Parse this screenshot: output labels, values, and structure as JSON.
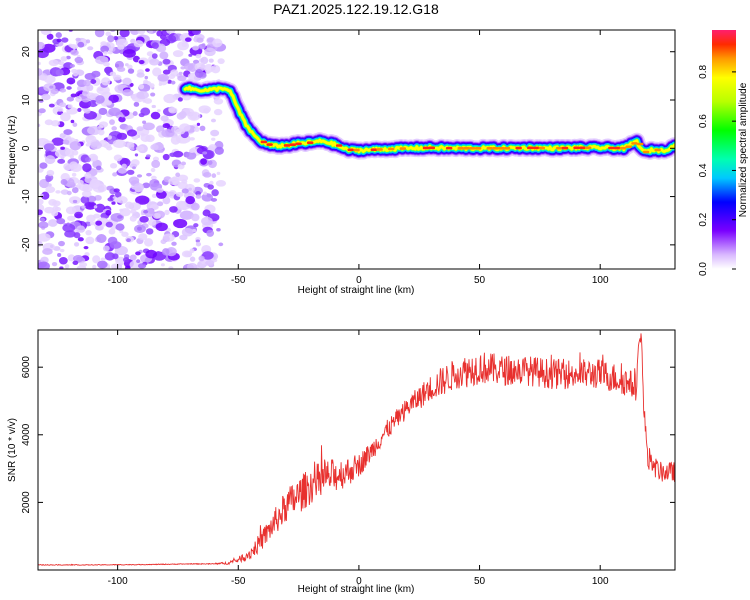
{
  "title": "PAZ1.2025.122.19.12.G18",
  "chart_data": [
    {
      "type": "heatmap",
      "xlabel": "Height of straight line (km)",
      "ylabel": "Frequency (Hz)",
      "xlim": [
        -133,
        131
      ],
      "ylim": [
        -25,
        24.5
      ],
      "xticks": [
        -100,
        -50,
        0,
        50,
        100
      ],
      "yticks": [
        -20,
        -10,
        0,
        10,
        20
      ],
      "ridge": {
        "x": [
          -72,
          -68,
          -64,
          -60,
          -56,
          -53,
          -50,
          -47,
          -44,
          -41,
          -38,
          -35,
          -30,
          -25,
          -20,
          -15,
          -10,
          -5,
          0,
          10,
          20,
          30,
          40,
          50,
          60,
          70,
          80,
          90,
          100,
          110,
          115,
          118,
          122,
          126,
          131
        ],
        "y": [
          12.5,
          12.2,
          12,
          12.2,
          12.5,
          11.5,
          8,
          5,
          3,
          1.5,
          0.8,
          0.5,
          0.6,
          1,
          1.2,
          1.5,
          0.8,
          -0.3,
          -0.4,
          -0.2,
          0,
          0.1,
          0,
          0,
          0,
          0.1,
          0,
          0.1,
          0.1,
          0,
          1.5,
          -0.8,
          -0.3,
          -0.5,
          0.5
        ]
      },
      "noise_region": [
        -133,
        -57
      ],
      "colorbar": {
        "label": "Normalized spectral amplitude",
        "ticks": [
          0.0,
          0.2,
          0.4,
          0.6,
          0.8
        ],
        "tick_labels": [
          "0.0",
          "0.2",
          "0.4",
          "0.6",
          "0.8"
        ],
        "range": [
          0,
          0.97
        ]
      }
    },
    {
      "type": "line",
      "xlabel": "Height of straight line (km)",
      "ylabel": "SNR (10 * v/v)",
      "xlim": [
        -133,
        131
      ],
      "ylim": [
        0,
        7100
      ],
      "xticks": [
        -100,
        -50,
        0,
        50,
        100
      ],
      "yticks": [
        2000,
        4000,
        6000
      ],
      "color": "#e8302e",
      "x": [
        -133,
        -110,
        -90,
        -70,
        -60,
        -55,
        -50,
        -45,
        -40,
        -35,
        -30,
        -25,
        -20,
        -15,
        -10,
        -5,
        0,
        5,
        10,
        15,
        20,
        25,
        30,
        35,
        40,
        45,
        50,
        60,
        70,
        80,
        90,
        100,
        105,
        110,
        115,
        116,
        117,
        118,
        120,
        125,
        131
      ],
      "y": [
        150,
        150,
        160,
        180,
        180,
        200,
        300,
        500,
        900,
        1400,
        1900,
        2200,
        2500,
        2700,
        2800,
        2900,
        3100,
        3500,
        4000,
        4400,
        4800,
        5100,
        5400,
        5600,
        5800,
        5900,
        6000,
        5900,
        5900,
        5800,
        5800,
        5800,
        5700,
        5600,
        5400,
        6600,
        7100,
        4800,
        3200,
        2900,
        2900
      ],
      "noise": [
        10,
        10,
        10,
        10,
        15,
        40,
        80,
        200,
        300,
        400,
        500,
        550,
        550,
        550,
        500,
        450,
        350,
        300,
        300,
        300,
        300,
        350,
        400,
        450,
        450,
        500,
        500,
        450,
        450,
        450,
        450,
        450,
        450,
        450,
        400,
        300,
        200,
        300,
        300,
        300,
        300
      ]
    }
  ]
}
